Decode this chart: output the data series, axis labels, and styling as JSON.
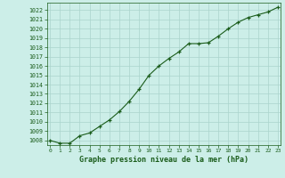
{
  "x": [
    0,
    1,
    2,
    3,
    4,
    5,
    6,
    7,
    8,
    9,
    10,
    11,
    12,
    13,
    14,
    15,
    16,
    17,
    18,
    19,
    20,
    21,
    22,
    23
  ],
  "y": [
    1008.0,
    1007.7,
    1007.7,
    1008.5,
    1008.8,
    1009.5,
    1010.2,
    1011.1,
    1012.2,
    1013.5,
    1015.0,
    1016.0,
    1016.8,
    1017.5,
    1018.4,
    1018.4,
    1018.5,
    1019.2,
    1020.0,
    1020.7,
    1021.2,
    1021.5,
    1021.8,
    1022.3
  ],
  "line_color": "#1a5c1a",
  "marker_color": "#1a5c1a",
  "bg_color": "#cceee8",
  "grid_color": "#aad4cc",
  "xlabel": "Graphe pression niveau de la mer (hPa)",
  "xlabel_color": "#1a5c1a",
  "tick_color": "#1a5c1a",
  "ylim_min": 1007.5,
  "ylim_max": 1022.8,
  "xlim_min": -0.3,
  "xlim_max": 23.3,
  "ytick_start": 1008,
  "ytick_end": 1022,
  "xtick_labels": [
    "0",
    "1",
    "2",
    "3",
    "4",
    "5",
    "6",
    "7",
    "8",
    "9",
    "10",
    "11",
    "12",
    "13",
    "14",
    "15",
    "16",
    "17",
    "18",
    "19",
    "20",
    "21",
    "22",
    "23"
  ]
}
